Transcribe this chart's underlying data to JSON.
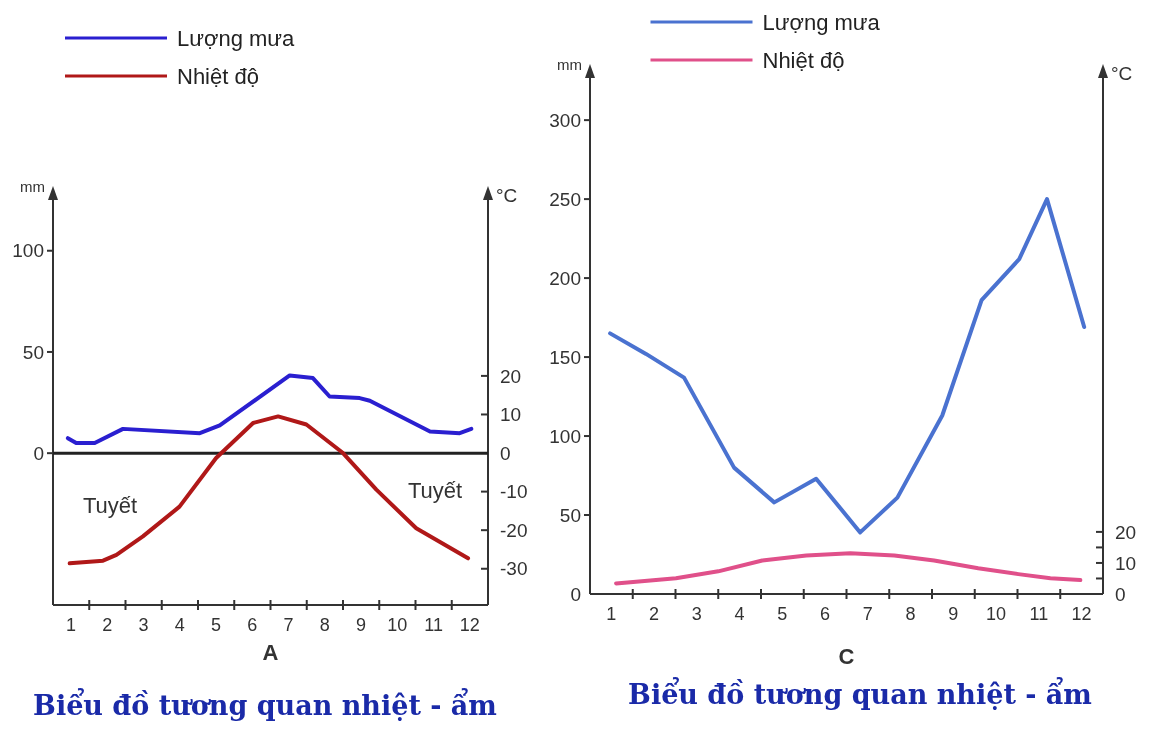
{
  "chart_data": [
    {
      "type": "line",
      "title": "A",
      "subtitle": "Biểu đồ tương quan nhiệt - ẩm",
      "ylabel": "mm",
      "y2label": "°C",
      "legend": "top left",
      "xlim": [
        0.5,
        12.5
      ],
      "xticks": [
        1,
        2,
        3,
        4,
        5,
        6,
        7,
        8,
        9,
        10,
        11,
        12,
        {
          "value": 1.5,
          "label": null
        },
        {
          "value": 2.5,
          "label": null
        },
        {
          "value": 3.5,
          "label": null
        },
        {
          "value": 4.5,
          "label": null
        },
        {
          "value": 5.5,
          "label": null
        },
        {
          "value": 6.5,
          "label": null
        },
        {
          "value": 7.5,
          "label": null
        },
        {
          "value": 8.5,
          "label": null
        },
        {
          "value": 9.5,
          "label": null
        },
        {
          "value": 10.5,
          "label": null
        },
        {
          "value": 11.5,
          "label": null
        }
      ],
      "ylim": [
        -75,
        130
      ],
      "yticks": [
        0,
        50,
        100
      ],
      "y2lim": [
        -39.4,
        68.2
      ],
      "y2ticks": [
        -30,
        -20,
        -10,
        0,
        10,
        20
      ],
      "ref_lines": [
        {
          "axis": "y",
          "value": 0,
          "color": "#222222"
        }
      ],
      "annotations": [
        "Tuyết",
        "Tuyết"
      ],
      "series": [
        {
          "name": "Lượng mưa",
          "color": "#2a1fd0",
          "x": [
            0.91,
            1.14,
            1.65,
            2.43,
            4.55,
            5.1,
            7.03,
            7.67,
            8.13,
            8.96,
            9.24,
            10.9,
            11.72,
            12.04
          ],
          "values": [
            7.4,
            5,
            5,
            12,
            9.9,
            13.7,
            38.4,
            37.1,
            28,
            27.2,
            25.9,
            10.7,
            9.9,
            12
          ]
        },
        {
          "name": "Nhiệt độ",
          "color": "#b01818",
          "axis": "y2",
          "x": [
            0.96,
            1.88,
            2.25,
            2.98,
            3.99,
            5.0,
            6.02,
            6.71,
            7.49,
            8.5,
            9.42,
            10.52,
            11.95
          ],
          "values": [
            -28.6,
            -27.9,
            -26.4,
            -21.6,
            -13.9,
            -1.3,
            7.8,
            9.5,
            7.4,
            0,
            -9.5,
            -19.5,
            -27.3
          ]
        }
      ]
    },
    {
      "type": "line",
      "title": "C",
      "subtitle": "Biểu đồ tương quan nhiệt - ẩm",
      "ylabel": "mm",
      "y2label": "°C",
      "legend": "top",
      "xlim": [
        0.5,
        12.5
      ],
      "xticks": [
        1,
        2,
        3,
        4,
        5,
        6,
        7,
        8,
        9,
        10,
        11,
        12,
        {
          "value": 1.5,
          "label": null
        },
        {
          "value": 2.5,
          "label": null
        },
        {
          "value": 3.5,
          "label": null
        },
        {
          "value": 4.5,
          "label": null
        },
        {
          "value": 5.5,
          "label": null
        },
        {
          "value": 6.5,
          "label": null
        },
        {
          "value": 7.5,
          "label": null
        },
        {
          "value": 8.5,
          "label": null
        },
        {
          "value": 9.5,
          "label": null
        },
        {
          "value": 10.5,
          "label": null
        },
        {
          "value": 11.5,
          "label": null
        }
      ],
      "ylim": [
        0,
        333
      ],
      "yticks": [
        0,
        50,
        100,
        150,
        200,
        250,
        300
      ],
      "y2lim": [
        0,
        169.4
      ],
      "y2ticks": [
        0,
        {
          "value": 5,
          "label": null
        },
        10,
        {
          "value": 15,
          "label": null
        },
        20
      ],
      "series": [
        {
          "name": "Lượng mưa",
          "color": "#4a72d0",
          "x": [
            0.97,
            1.81,
            2.7,
            3.87,
            4.81,
            5.79,
            6.82,
            7.69,
            8.74,
            9.66,
            10.54,
            11.19,
            12.06
          ],
          "values": [
            165,
            152,
            137,
            80,
            58,
            73,
            39,
            61,
            113,
            186,
            212,
            250,
            169
          ]
        },
        {
          "name": "Nhiệt độ",
          "color": "#e0508a",
          "axis": "y2",
          "x": [
            1.11,
            2.51,
            3.5,
            4.53,
            5.56,
            6.59,
            7.62,
            8.55,
            9.58,
            10.52,
            11.27,
            11.97
          ],
          "values": [
            3.4,
            5.1,
            7.3,
            10.8,
            12.4,
            13.1,
            12.4,
            10.8,
            8.3,
            6.4,
            5.1,
            4.5
          ]
        }
      ]
    }
  ]
}
